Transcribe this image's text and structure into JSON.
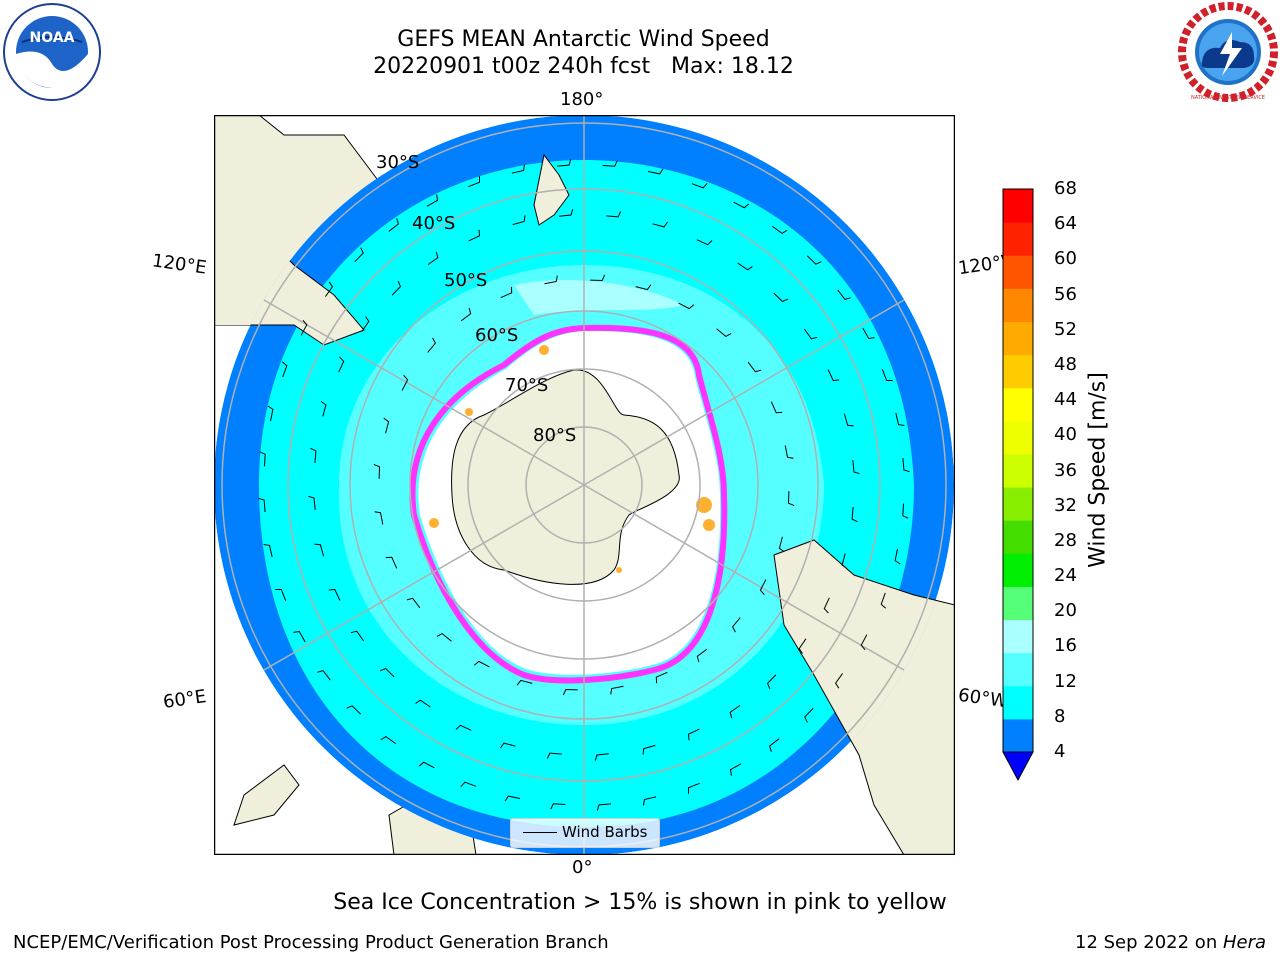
{
  "title": {
    "line1": "GEFS MEAN Antarctic Wind Speed",
    "line2": "20220901 t00z 240h fcst   Max: 18.12"
  },
  "logos": {
    "left": {
      "text": "NOAA",
      "icon": "noaa-logo"
    },
    "right": {
      "text": "NATIONAL WEATHER SERVICE",
      "icon": "nws-logo"
    }
  },
  "map": {
    "projection": "south-polar-stereographic",
    "lat_labels": [
      "30°S",
      "40°S",
      "50°S",
      "60°S",
      "70°S",
      "80°S"
    ],
    "lon_labels": {
      "top": "180°",
      "bottom": "0°",
      "left_upper": "120°E",
      "left_lower": "60°E",
      "right_upper": "120°W",
      "right_lower": "60°W"
    },
    "ocean_colors": {
      "4-8": "#0080ff",
      "8-12": "#00ffff",
      "12-16": "#55ffff",
      "16-20": "#aaffff"
    },
    "land_color": "#efefdb",
    "ice_colors": [
      "#ff33ff",
      "#ffb030",
      "#ffe000"
    ]
  },
  "legend": {
    "label": "Wind Barbs"
  },
  "colorbar": {
    "label": "Wind Speed [m/s]",
    "ticks": [
      "68",
      "64",
      "60",
      "56",
      "52",
      "48",
      "44",
      "40",
      "36",
      "32",
      "28",
      "24",
      "20",
      "16",
      "12",
      "8",
      "4"
    ],
    "colors": [
      "#0080ff",
      "#00ffff",
      "#55ffff",
      "#aaffff",
      "#55ff77",
      "#00ee00",
      "#44dd00",
      "#88ee00",
      "#ccff00",
      "#eeff00",
      "#ffff00",
      "#ffcc00",
      "#ffaa00",
      "#ff8800",
      "#ff5500",
      "#ff2200",
      "#ff0000"
    ],
    "under_color": "#0000ff"
  },
  "note": "Sea Ice Concentration > 15% is shown in pink to yellow",
  "footer": {
    "left": "NCEP/EMC/Verification Post Processing Product Generation Branch",
    "right_date": "12 Sep 2022 on ",
    "right_host": "Hera"
  }
}
